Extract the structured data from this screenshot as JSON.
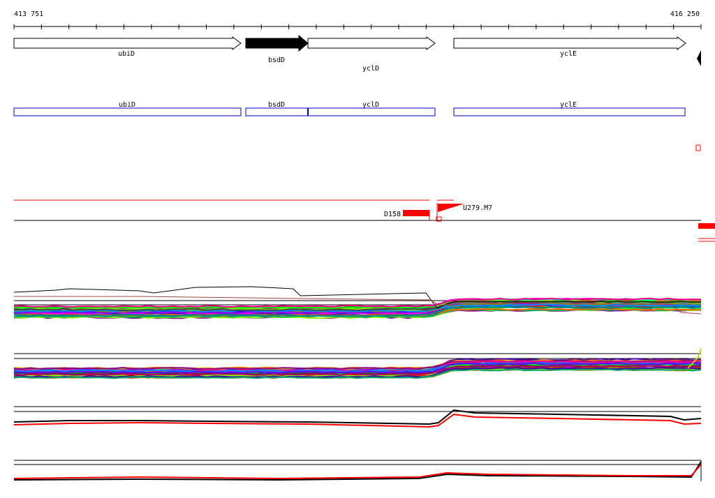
{
  "coordinates": {
    "start": "413 751",
    "end": "416 250"
  },
  "genes": [
    {
      "name": "ubiD",
      "filled": false,
      "strand": "+"
    },
    {
      "name": "bsdD",
      "filled": true,
      "strand": "+"
    },
    {
      "name": "yclD",
      "filled": false,
      "strand": "+"
    },
    {
      "name": "yclE",
      "filled": false,
      "strand": "+"
    }
  ],
  "transcripts": [
    {
      "name": "ubiD"
    },
    {
      "name": "bsdD"
    },
    {
      "name": "yclD"
    },
    {
      "name": "yclE"
    }
  ],
  "features": {
    "down_marker": "D158",
    "up_marker": "U279.M7"
  },
  "colors": {
    "gene_outline": "#000000",
    "transcript_outline": "#0000cc",
    "feature": "#ff0000",
    "ruler": "#000000"
  }
}
